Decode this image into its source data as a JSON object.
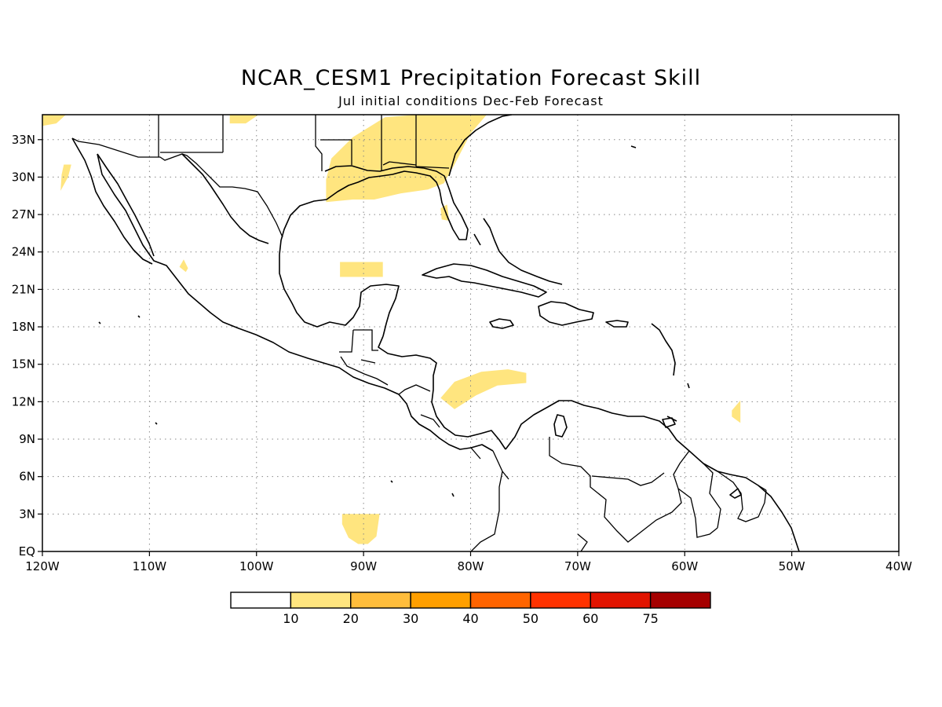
{
  "title": "NCAR_CESM1 Precipitation Forecast Skill",
  "subtitle": "Jul initial conditions  Dec-Feb Forecast",
  "map": {
    "lon_range": [
      -120,
      -40
    ],
    "lat_range": [
      0,
      35
    ],
    "grid": "dotted",
    "lon_ticks": [
      {
        "lon": -120,
        "label": "120W"
      },
      {
        "lon": -110,
        "label": "110W"
      },
      {
        "lon": -100,
        "label": "100W"
      },
      {
        "lon": -90,
        "label": "90W"
      },
      {
        "lon": -80,
        "label": "80W"
      },
      {
        "lon": -70,
        "label": "70W"
      },
      {
        "lon": -60,
        "label": "60W"
      },
      {
        "lon": -50,
        "label": "50W"
      },
      {
        "lon": -40,
        "label": "40W"
      }
    ],
    "lat_ticks": [
      {
        "lat": 0,
        "label": "EQ"
      },
      {
        "lat": 3,
        "label": "3N"
      },
      {
        "lat": 6,
        "label": "6N"
      },
      {
        "lat": 9,
        "label": "9N"
      },
      {
        "lat": 12,
        "label": "12N"
      },
      {
        "lat": 15,
        "label": "15N"
      },
      {
        "lat": 18,
        "label": "18N"
      },
      {
        "lat": 21,
        "label": "21N"
      },
      {
        "lat": 24,
        "label": "24N"
      },
      {
        "lat": 27,
        "label": "27N"
      },
      {
        "lat": 30,
        "label": "30N"
      },
      {
        "lat": 33,
        "label": "33N"
      }
    ],
    "skill_regions": [
      {
        "name": "southeast-us-gulf-coast",
        "category": "10-20",
        "points": [
          [
            -93,
            31.5
          ],
          [
            -91,
            33.2
          ],
          [
            -88,
            34.8
          ],
          [
            -85,
            35
          ],
          [
            -81,
            35
          ],
          [
            -78.5,
            35
          ],
          [
            -80,
            33.5
          ],
          [
            -81.5,
            31
          ],
          [
            -82.5,
            29.5
          ],
          [
            -84,
            29
          ],
          [
            -86.5,
            28.7
          ],
          [
            -89,
            28.2
          ],
          [
            -91,
            28.2
          ],
          [
            -93.5,
            28
          ],
          [
            -93.5,
            29.8
          ]
        ]
      },
      {
        "name": "florida-patch",
        "category": "10-20",
        "points": [
          [
            -82.8,
            27.5
          ],
          [
            -82.2,
            27.8
          ],
          [
            -82,
            26.5
          ],
          [
            -82.7,
            26.6
          ]
        ]
      },
      {
        "name": "texas-north-patch",
        "category": "10-20",
        "points": [
          [
            -102.5,
            35
          ],
          [
            -99.8,
            35
          ],
          [
            -101,
            34.3
          ],
          [
            -102.5,
            34.3
          ]
        ]
      },
      {
        "name": "northwest-corner-patch",
        "category": "10-20",
        "points": [
          [
            -120,
            35
          ],
          [
            -117.8,
            35
          ],
          [
            -118.7,
            34.3
          ],
          [
            -120,
            34.1
          ]
        ]
      },
      {
        "name": "baja-west-patch",
        "category": "10-20",
        "points": [
          [
            -118,
            31
          ],
          [
            -117.3,
            31
          ],
          [
            -117.6,
            30
          ],
          [
            -118.3,
            28.9
          ],
          [
            -118.2,
            30.2
          ]
        ]
      },
      {
        "name": "sinaloa-patch",
        "category": "10-20",
        "points": [
          [
            -107.2,
            22.8
          ],
          [
            -106.6,
            22.4
          ],
          [
            -106.4,
            22.7
          ],
          [
            -106.8,
            23.4
          ]
        ]
      },
      {
        "name": "gulf-yucatan-patch",
        "category": "10-20",
        "points": [
          [
            -92.2,
            22
          ],
          [
            -88.2,
            22
          ],
          [
            -88.2,
            23.2
          ],
          [
            -92.2,
            23.2
          ]
        ]
      },
      {
        "name": "caribbean-band",
        "category": "10-20",
        "points": [
          [
            -82.8,
            12.3
          ],
          [
            -81.5,
            11.4
          ],
          [
            -79.5,
            12.5
          ],
          [
            -77.5,
            13.3
          ],
          [
            -74.8,
            13.5
          ],
          [
            -74.8,
            14.3
          ],
          [
            -76.5,
            14.6
          ],
          [
            -79,
            14.4
          ],
          [
            -81.5,
            13.6
          ]
        ]
      },
      {
        "name": "atlantic-patch",
        "category": "10-20",
        "points": [
          [
            -55.6,
            11.3
          ],
          [
            -54.8,
            12.1
          ],
          [
            -54.8,
            10.3
          ],
          [
            -55.6,
            10.8
          ]
        ]
      },
      {
        "name": "equatorial-pacific-patch",
        "category": "10-20",
        "points": [
          [
            -92,
            3
          ],
          [
            -88.5,
            3
          ],
          [
            -88.8,
            1.2
          ],
          [
            -89.6,
            0.6
          ],
          [
            -90.5,
            0.6
          ],
          [
            -91.4,
            1.1
          ],
          [
            -92,
            2.2
          ]
        ]
      }
    ]
  },
  "colorbar": {
    "categories": [
      {
        "range": "0-10",
        "color": "#ffffff"
      },
      {
        "range": "10-20",
        "color": "#ffe57f"
      },
      {
        "range": "20-30",
        "color": "#ffbd3c"
      },
      {
        "range": "30-40",
        "color": "#ff9f00"
      },
      {
        "range": "40-50",
        "color": "#ff6400"
      },
      {
        "range": "50-60",
        "color": "#ff3200"
      },
      {
        "range": "60-75",
        "color": "#e11400"
      },
      {
        "range": "75+",
        "color": "#a50000"
      }
    ],
    "tick_labels": [
      "10",
      "20",
      "30",
      "40",
      "50",
      "60",
      "75"
    ]
  },
  "outline_color": "#000000",
  "grid_color": "#888888"
}
